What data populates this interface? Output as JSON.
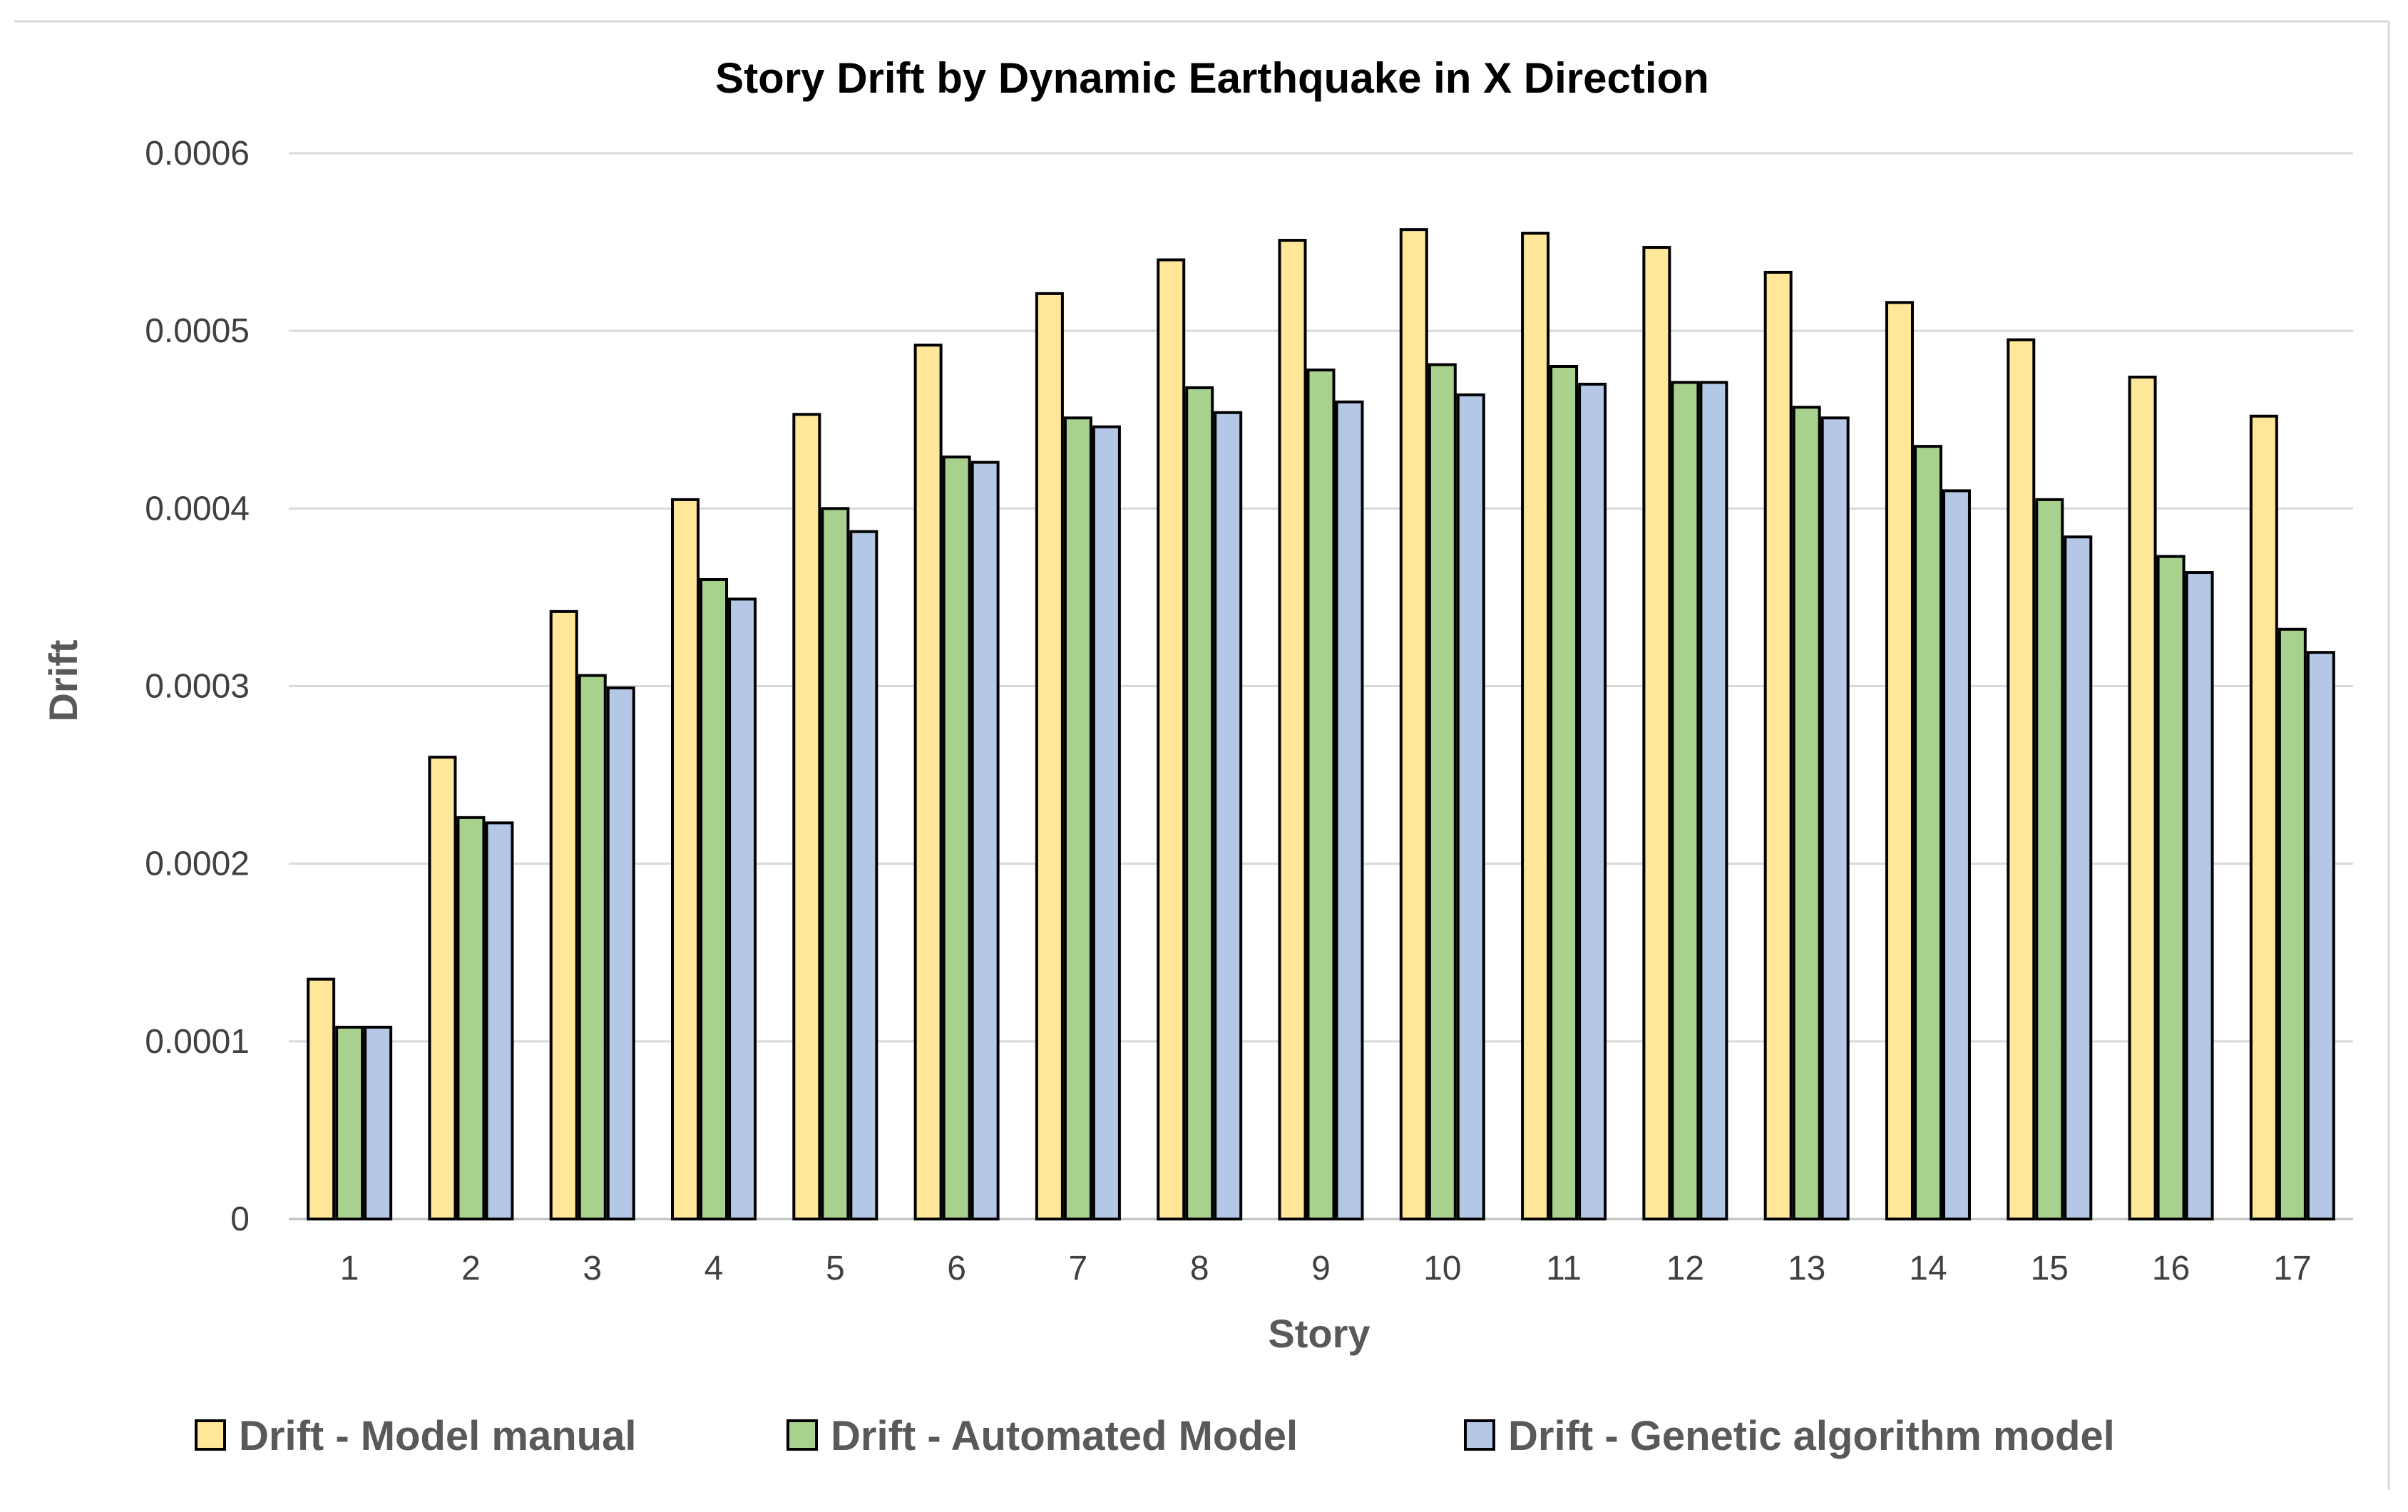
{
  "chart_data": {
    "type": "bar",
    "title": "Story Drift by Dynamic Earthquake in X Direction",
    "xlabel": "Story",
    "ylabel": "Drift",
    "ylim": [
      0,
      0.0006
    ],
    "yticks": [
      "0",
      "0.0001",
      "0.0002",
      "0.0003",
      "0.0004",
      "0.0005",
      "0.0006"
    ],
    "grid": true,
    "legend_position": "bottom",
    "categories": [
      "1",
      "2",
      "3",
      "4",
      "5",
      "6",
      "7",
      "8",
      "9",
      "10",
      "11",
      "12",
      "13",
      "14",
      "15",
      "16",
      "17"
    ],
    "series": [
      {
        "name": "Drift - Model manual",
        "color": "#FFE699",
        "values": [
          0.000135,
          0.00026,
          0.000342,
          0.000405,
          0.000453,
          0.000492,
          0.000521,
          0.00054,
          0.000551,
          0.000557,
          0.000555,
          0.000547,
          0.000533,
          0.000516,
          0.000495,
          0.000474,
          0.000452
        ]
      },
      {
        "name": "Drift - Automated Model",
        "color": "#A9D18E",
        "values": [
          0.000108,
          0.000226,
          0.000306,
          0.00036,
          0.0004,
          0.000429,
          0.000451,
          0.000468,
          0.000478,
          0.000481,
          0.00048,
          0.000471,
          0.000457,
          0.000435,
          0.000405,
          0.000373,
          0.000332
        ]
      },
      {
        "name": "Drift - Genetic algorithm model",
        "color": "#B4C7E7",
        "values": [
          0.000108,
          0.000223,
          0.000299,
          0.000349,
          0.000387,
          0.000426,
          0.000446,
          0.000454,
          0.00046,
          0.000464,
          0.00047,
          0.000471,
          0.000451,
          0.00041,
          0.000384,
          0.000364,
          0.000319
        ]
      }
    ]
  }
}
